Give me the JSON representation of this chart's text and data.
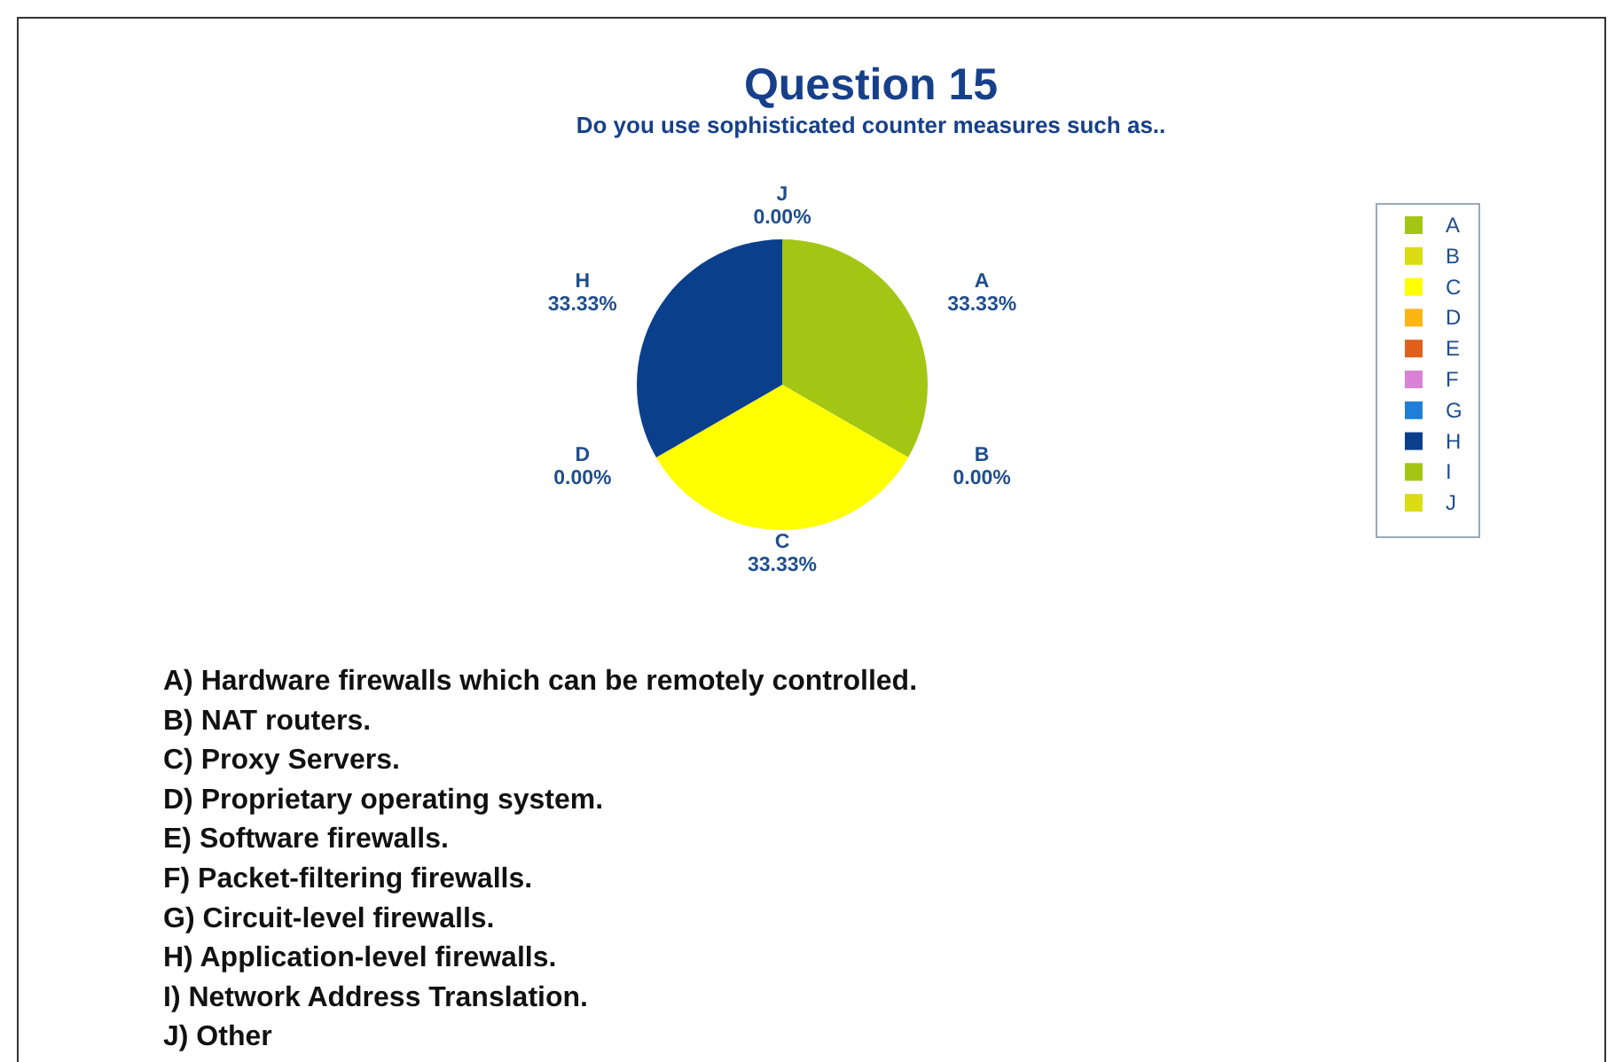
{
  "chart_data": {
    "type": "pie",
    "title": "Question 15",
    "subtitle": "Do you use sophisticated counter measures such as..",
    "categories": [
      "A",
      "B",
      "C",
      "D",
      "E",
      "F",
      "G",
      "H",
      "I",
      "J"
    ],
    "values": [
      33.33,
      0,
      33.33,
      0,
      0,
      0,
      0,
      33.33,
      0,
      0
    ],
    "colors": [
      "#a3c614",
      "#dcdc14",
      "#ffff00",
      "#fbb515",
      "#e0601c",
      "#d982d6",
      "#1f7fd8",
      "#0a3f8c",
      "#a3c614",
      "#dcdc14"
    ],
    "value_labels": [
      "33.33%",
      "0.00%",
      "33.33%",
      "0.00%",
      null,
      null,
      null,
      "33.33%",
      null,
      "0.00%"
    ],
    "legend": "right",
    "annotations": [
      "A) Hardware firewalls which can be remotely controlled.",
      "B) NAT routers.",
      "C) Proxy Servers.",
      "D) Proprietary operating system.",
      "E) Software firewalls.",
      "F) Packet-filtering firewalls.",
      "G) Circuit-level firewalls.",
      "H) Application-level firewalls.",
      "I) Network Address Translation.",
      "J) Other"
    ]
  }
}
